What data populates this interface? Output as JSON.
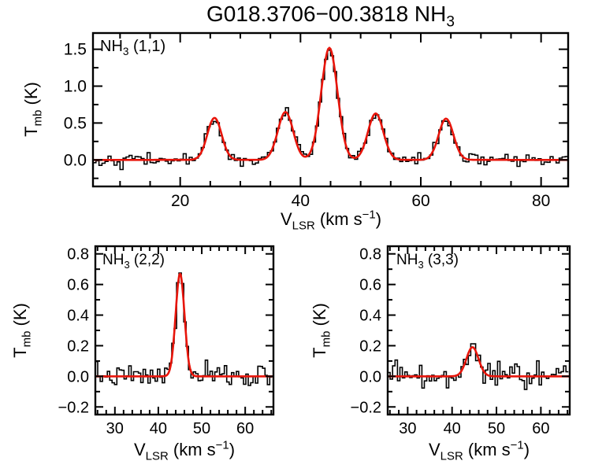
{
  "title": {
    "text": "G018.3706−00.3818 NH",
    "sub": "3"
  },
  "axis_labels": {
    "y": {
      "main": "T",
      "sub": "mb",
      "rest": " (K)"
    },
    "x": {
      "main": "V",
      "sub": "LSR",
      "mid": " (km s",
      "sup": "−1",
      "end": ")"
    }
  },
  "colors": {
    "fit": "#e8150b",
    "data": "#000000",
    "axes": "#000000",
    "background": "#ffffff"
  },
  "chart_data": [
    {
      "type": "line",
      "panel_id": "nh3-11",
      "title": "NH3 (1,1)",
      "label": {
        "main": "NH",
        "sub": "3",
        "rest": " (1,1)"
      },
      "xlabel": "V_LSR (km s^-1)",
      "ylabel": "T_mb (K)",
      "x_range": [
        5.5,
        84.5
      ],
      "y_range": [
        -0.36,
        1.72
      ],
      "x_major_ticks": [
        20,
        40,
        60,
        80
      ],
      "x_tick_labels": [
        "20",
        "40",
        "60",
        "80"
      ],
      "x_minor_step": 5,
      "y_major_ticks": [
        0.0,
        0.5,
        1.0,
        1.5
      ],
      "y_tick_labels": [
        "0.0",
        "0.5",
        "1.0",
        "1.5"
      ],
      "y_minor_step": 0.25,
      "grid": false,
      "legend": false,
      "baseline": 0.0,
      "gaussians": [
        {
          "center": 25.7,
          "amplitude": 0.57,
          "fwhm": 2.8
        },
        {
          "center": 37.5,
          "amplitude": 0.65,
          "fwhm": 3.0
        },
        {
          "center": 44.8,
          "amplitude": 1.52,
          "fwhm": 3.2
        },
        {
          "center": 52.5,
          "amplitude": 0.63,
          "fwhm": 3.0
        },
        {
          "center": 64.2,
          "amplitude": 0.56,
          "fwhm": 2.9
        }
      ],
      "noise_rms": 0.04,
      "channel_width": 0.5,
      "noise_seed": 42
    },
    {
      "type": "line",
      "panel_id": "nh3-22",
      "title": "NH3 (2,2)",
      "label": {
        "main": "NH",
        "sub": "3",
        "rest": " (2,2)"
      },
      "xlabel": "V_LSR (km s^-1)",
      "ylabel": "T_mb (K)",
      "x_range": [
        25.5,
        66.5
      ],
      "y_range": [
        -0.25,
        0.85
      ],
      "x_major_ticks": [
        30,
        40,
        50,
        60
      ],
      "x_tick_labels": [
        "30",
        "40",
        "50",
        "60"
      ],
      "x_minor_step": 2,
      "y_major_ticks": [
        -0.2,
        0.0,
        0.2,
        0.4,
        0.6,
        0.8
      ],
      "y_tick_labels": [
        "−0.2",
        "0.0",
        "0.2",
        "0.4",
        "0.6",
        "0.8"
      ],
      "y_minor_step": 0.1,
      "grid": false,
      "legend": false,
      "baseline": 0.0,
      "gaussians": [
        {
          "center": 45.0,
          "amplitude": 0.67,
          "fwhm": 2.4
        }
      ],
      "noise_rms": 0.035,
      "channel_width": 0.55,
      "noise_seed": 7
    },
    {
      "type": "line",
      "panel_id": "nh3-33",
      "title": "NH3 (3,3)",
      "label": {
        "main": "NH",
        "sub": "3",
        "rest": " (3,3)"
      },
      "xlabel": "V_LSR (km s^-1)",
      "ylabel": "T_mb (K)",
      "x_range": [
        25.5,
        66.5
      ],
      "y_range": [
        -0.25,
        0.85
      ],
      "x_major_ticks": [
        30,
        40,
        50,
        60
      ],
      "x_tick_labels": [
        "30",
        "40",
        "50",
        "60"
      ],
      "x_minor_step": 2,
      "y_major_ticks": [
        -0.2,
        0.0,
        0.2,
        0.4,
        0.6,
        0.8
      ],
      "y_tick_labels": [
        "−0.2",
        "0.0",
        "0.2",
        "0.4",
        "0.6",
        "0.8"
      ],
      "y_minor_step": 0.1,
      "grid": false,
      "legend": false,
      "baseline": 0.0,
      "gaussians": [
        {
          "center": 44.6,
          "amplitude": 0.19,
          "fwhm": 3.2
        }
      ],
      "noise_rms": 0.045,
      "channel_width": 0.55,
      "noise_seed": 99
    }
  ]
}
